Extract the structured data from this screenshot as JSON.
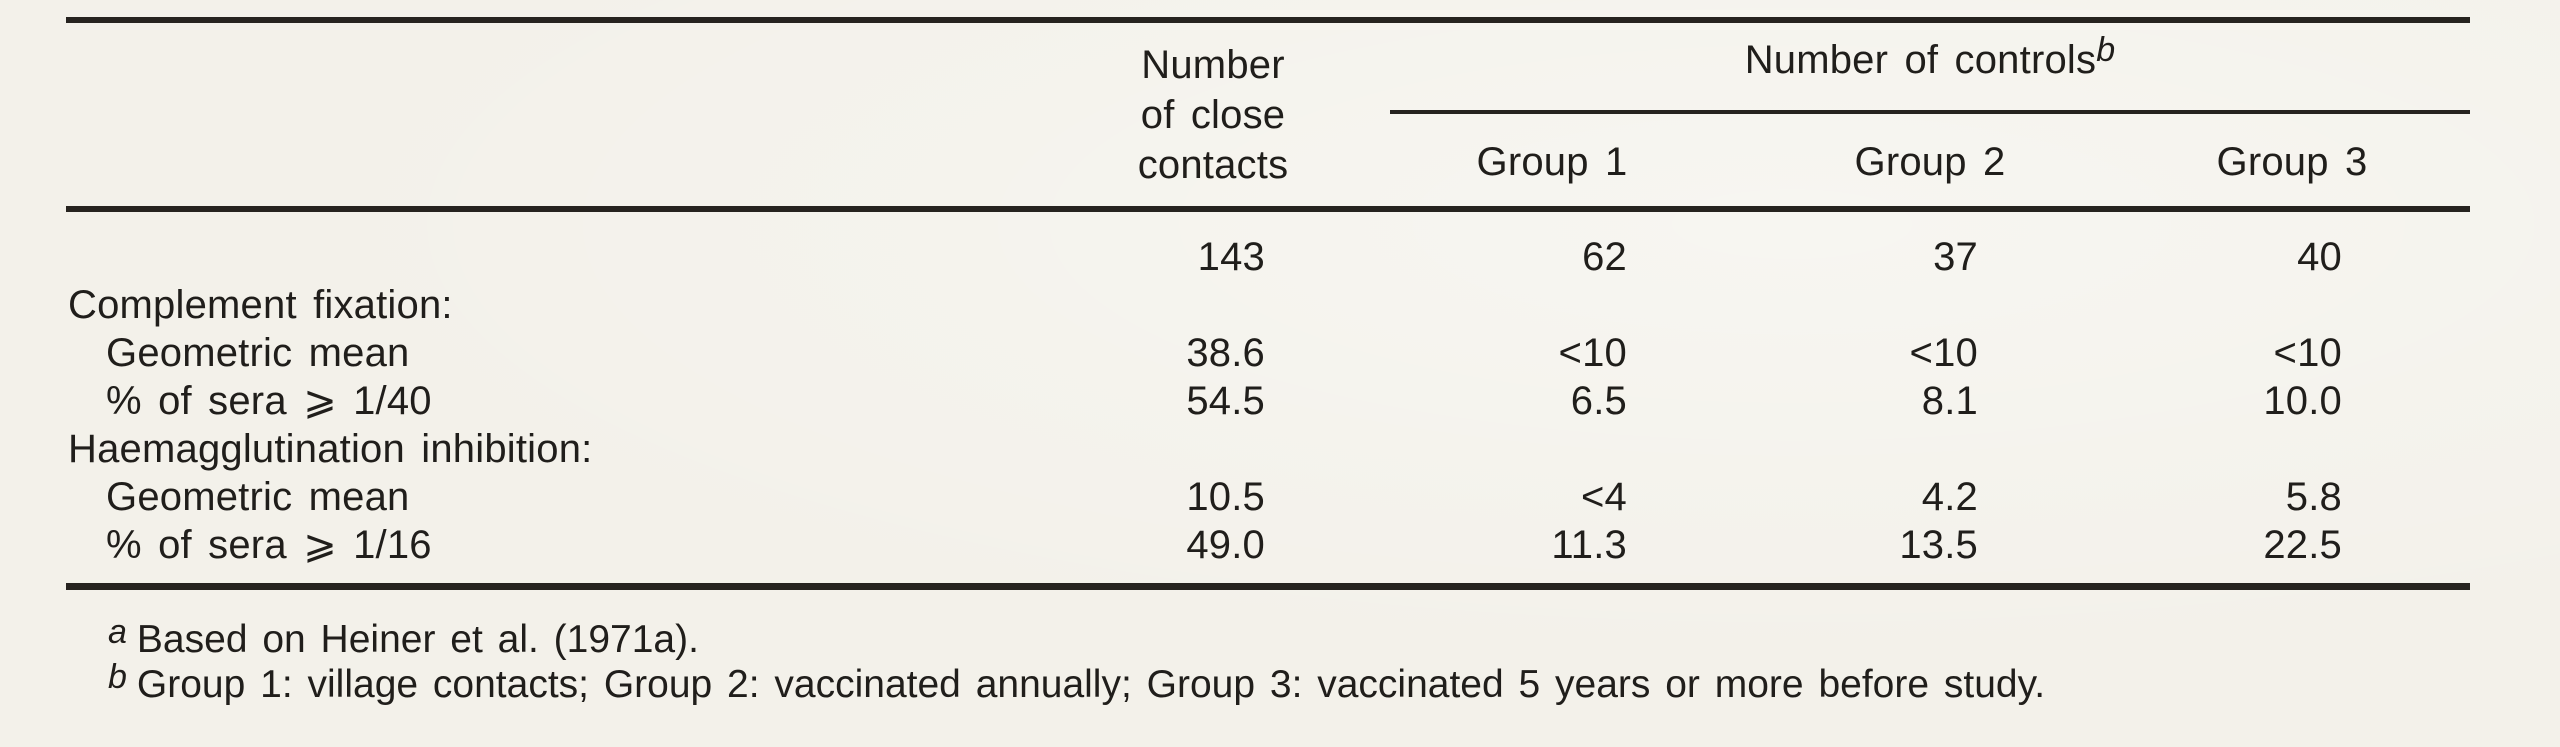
{
  "colors": {
    "paper": "#f3f1ea",
    "ink": "#201e1b",
    "rule": "#26231f"
  },
  "table": {
    "header": {
      "close_contacts_lines": [
        "Number",
        "of close",
        "contacts"
      ],
      "controls_label": "Number of controls",
      "controls_sup": "b",
      "groups": [
        "Group 1",
        "Group 2",
        "Group 3"
      ]
    },
    "counts": [
      "143",
      "62",
      "37",
      "40"
    ],
    "sections": [
      {
        "label": "Complement fixation:",
        "rows": [
          {
            "label": "Geometric mean",
            "values": [
              "38.6",
              "<10",
              "<10",
              "<10"
            ]
          },
          {
            "label": "% of sera ⩾ 1/40",
            "values": [
              "54.5",
              "6.5",
              "8.1",
              "10.0"
            ]
          }
        ]
      },
      {
        "label": "Haemagglutination inhibition:",
        "rows": [
          {
            "label": "Geometric mean",
            "values": [
              "10.5",
              "<4",
              "4.2",
              "5.8"
            ]
          },
          {
            "label": "% of sera ⩾ 1/16",
            "values": [
              "49.0",
              "11.3",
              "13.5",
              "22.5"
            ]
          }
        ]
      }
    ],
    "footnotes": [
      {
        "marker": "a",
        "text": "Based on Heiner et al. (1971a)."
      },
      {
        "marker": "b",
        "text": "Group 1: village contacts; Group 2: vaccinated annually; Group 3: vaccinated 5 years or more before study."
      }
    ]
  }
}
